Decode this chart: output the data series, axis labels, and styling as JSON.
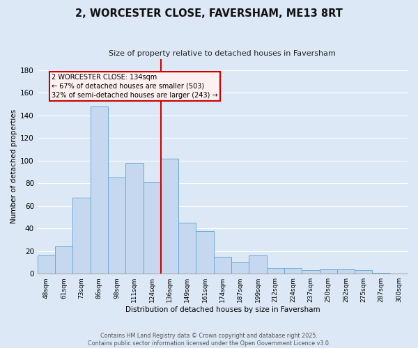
{
  "title": "2, WORCESTER CLOSE, FAVERSHAM, ME13 8RT",
  "subtitle": "Size of property relative to detached houses in Faversham",
  "xlabel": "Distribution of detached houses by size in Faversham",
  "ylabel": "Number of detached properties",
  "categories": [
    "48sqm",
    "61sqm",
    "73sqm",
    "86sqm",
    "98sqm",
    "111sqm",
    "124sqm",
    "136sqm",
    "149sqm",
    "161sqm",
    "174sqm",
    "187sqm",
    "199sqm",
    "212sqm",
    "224sqm",
    "237sqm",
    "250sqm",
    "262sqm",
    "275sqm",
    "287sqm",
    "300sqm"
  ],
  "values": [
    16,
    24,
    67,
    148,
    85,
    98,
    81,
    102,
    45,
    38,
    15,
    10,
    16,
    5,
    5,
    3,
    4,
    4,
    3,
    1,
    0
  ],
  "bar_color": "#c5d8ef",
  "bar_edge_color": "#6aaad4",
  "red_line_index": 7,
  "ylim": [
    0,
    190
  ],
  "yticks": [
    0,
    20,
    40,
    60,
    80,
    100,
    120,
    140,
    160,
    180
  ],
  "annotation_title": "2 WORCESTER CLOSE: 134sqm",
  "annotation_line1": "← 67% of detached houses are smaller (503)",
  "annotation_line2": "32% of semi-detached houses are larger (243) →",
  "annotation_border_color": "#cc0000",
  "annotation_bg_color": "#fdf0f0",
  "bg_color": "#dce8f5",
  "grid_color": "#ffffff",
  "footer_line1": "Contains HM Land Registry data © Crown copyright and database right 2025.",
  "footer_line2": "Contains public sector information licensed under the Open Government Licence v3.0."
}
